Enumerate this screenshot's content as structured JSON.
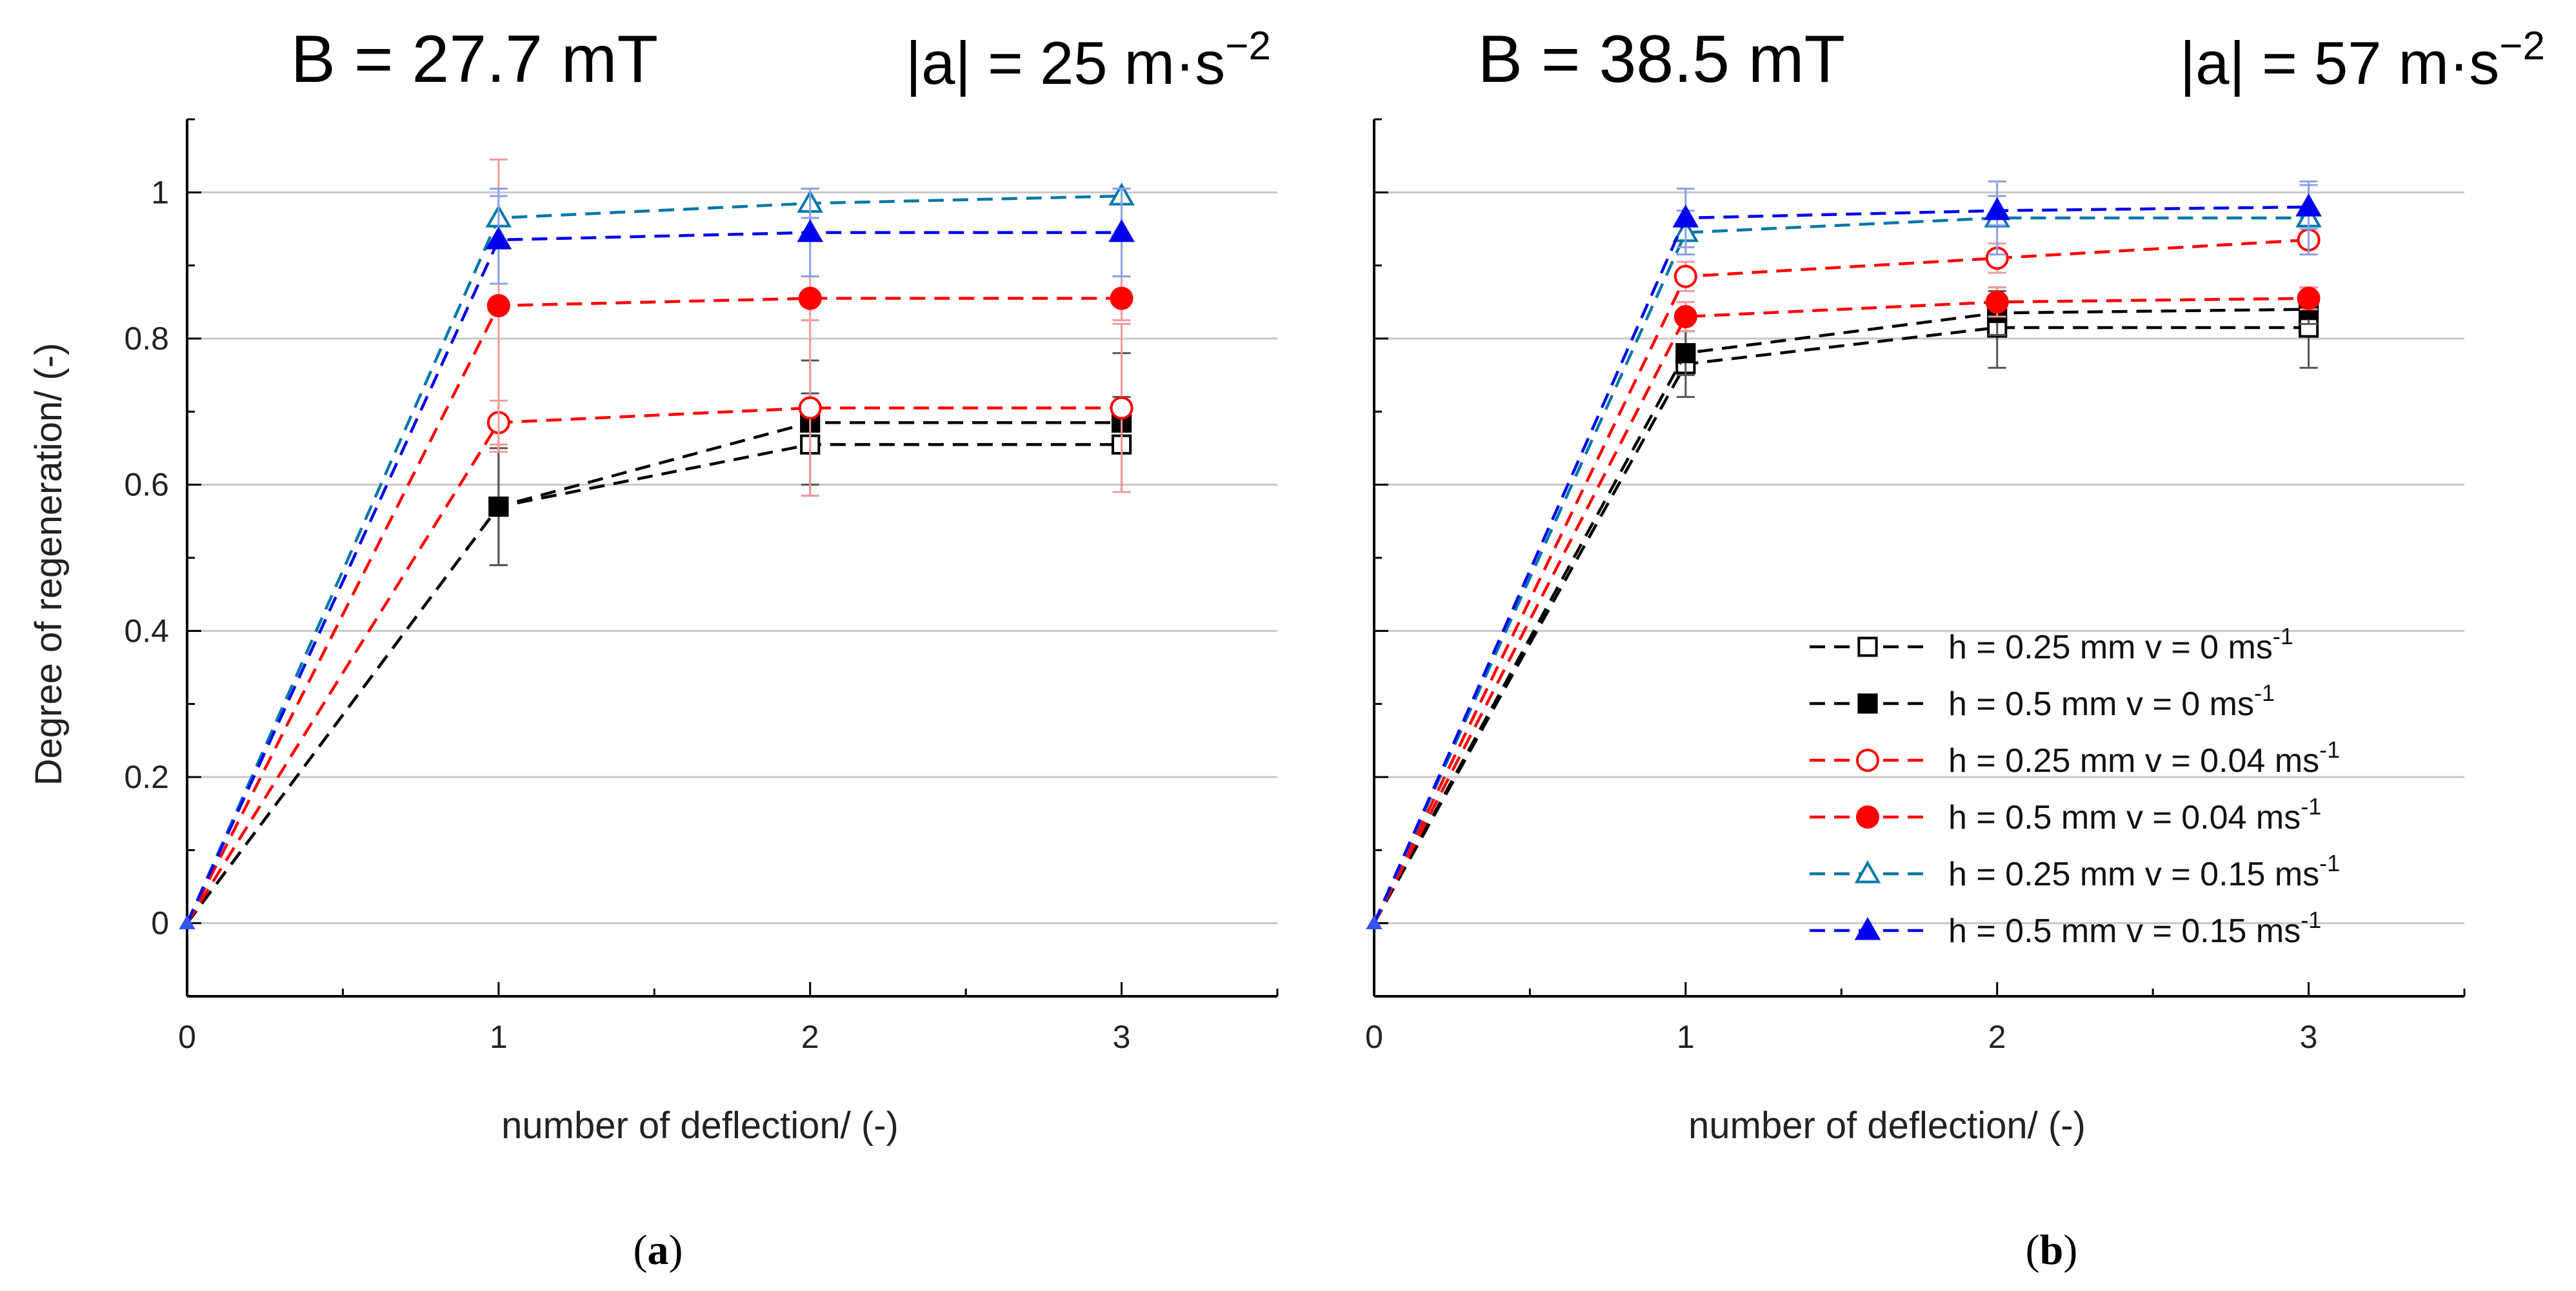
{
  "legend_entries": [
    {
      "label": "h = 0.25 mm v = 0 ms",
      "sup": "-1",
      "color": "#000000",
      "marker": "square",
      "filled": false
    },
    {
      "label": "h = 0.5 mm v = 0 ms",
      "sup": "-1",
      "color": "#000000",
      "marker": "square",
      "filled": true
    },
    {
      "label": "h = 0.25 mm v = 0.04 ms",
      "sup": "-1",
      "color": "#ff0000",
      "marker": "circle",
      "filled": false
    },
    {
      "label": "h = 0.5 mm v = 0.04 ms",
      "sup": "-1",
      "color": "#ff0000",
      "marker": "circle",
      "filled": true
    },
    {
      "label": "h = 0.25 mm v = 0.15 ms",
      "sup": "-1",
      "color": "#0077aa",
      "marker": "triangle",
      "filled": false
    },
    {
      "label": "h = 0.5 mm v = 0.15 ms",
      "sup": "-1",
      "color": "#0000ee",
      "marker": "triangle",
      "filled": true
    }
  ],
  "chart_data": [
    {
      "type": "line",
      "panel_label": "a",
      "title_left": "B = 27.7 mT",
      "title_right_base": "|a| = 25 m·s",
      "title_right_sup": "−2",
      "xlabel": "number of deflection/ (-)",
      "ylabel": "Degree of regeneration/ (-)",
      "x": [
        0,
        1,
        2,
        3
      ],
      "xlim": [
        0,
        3.5
      ],
      "ylim": [
        -0.1,
        1.1
      ],
      "xticks": [
        "0",
        "1",
        "2",
        "3"
      ],
      "yticks": [
        "0",
        "0.2",
        "0.4",
        "0.6",
        "0.8",
        "1"
      ],
      "grid": true,
      "series": [
        {
          "name": "h = 0.25 mm v = 0 ms-1",
          "values": [
            0,
            0.57,
            0.655,
            0.655
          ],
          "errors": [
            0,
            0.08,
            0.07,
            0.065
          ]
        },
        {
          "name": "h = 0.5 mm v = 0 ms-1",
          "values": [
            0,
            0.57,
            0.685,
            0.685
          ],
          "errors": [
            0,
            0.08,
            0.085,
            0.095
          ]
        },
        {
          "name": "h = 0.25 mm v = 0.04 ms-1",
          "values": [
            0,
            0.685,
            0.705,
            0.705
          ],
          "errors": [
            0,
            0.03,
            0.12,
            0.115
          ]
        },
        {
          "name": "h = 0.5 mm v = 0.04 ms-1",
          "values": [
            0,
            0.845,
            0.855,
            0.855
          ],
          "errors": [
            0,
            0.2,
            0.03,
            0.03
          ]
        },
        {
          "name": "h = 0.25 mm v = 0.15 ms-1",
          "values": [
            0,
            0.965,
            0.985,
            0.995
          ],
          "errors": [
            0,
            0.04,
            0.02,
            0.01
          ]
        },
        {
          "name": "h = 0.5 mm v = 0.15 ms-1",
          "values": [
            0,
            0.935,
            0.945,
            0.945
          ],
          "errors": [
            0,
            0.06,
            0.06,
            0.06
          ]
        }
      ]
    },
    {
      "type": "line",
      "panel_label": "b",
      "title_left": "B = 38.5 mT",
      "title_right_base": "|a| = 57 m·s",
      "title_right_sup": "−2",
      "xlabel": "number of deflection/ (-)",
      "ylabel": "",
      "x": [
        0,
        1,
        2,
        3
      ],
      "xlim": [
        0,
        3.5
      ],
      "ylim": [
        -0.1,
        1.1
      ],
      "xticks": [
        "0",
        "1",
        "2",
        "3"
      ],
      "yticks": [],
      "grid": true,
      "legend_position": "lower-right",
      "series": [
        {
          "name": "h = 0.25 mm v = 0 ms-1",
          "values": [
            0,
            0.765,
            0.815,
            0.815
          ],
          "errors": [
            0,
            0.045,
            0.055,
            0.055
          ]
        },
        {
          "name": "h = 0.5 mm v = 0 ms-1",
          "values": [
            0,
            0.78,
            0.835,
            0.84
          ],
          "errors": [
            0,
            0.03,
            0.03,
            0.02
          ]
        },
        {
          "name": "h = 0.25 mm v = 0.04 ms-1",
          "values": [
            0,
            0.885,
            0.91,
            0.935
          ],
          "errors": [
            0,
            0.02,
            0.02,
            0.02
          ]
        },
        {
          "name": "h = 0.5 mm v = 0.04 ms-1",
          "values": [
            0,
            0.83,
            0.85,
            0.855
          ],
          "errors": [
            0,
            0.02,
            0.02,
            0.015
          ]
        },
        {
          "name": "h = 0.25 mm v = 0.15 ms-1",
          "values": [
            0,
            0.945,
            0.965,
            0.965
          ],
          "errors": [
            0,
            0.03,
            0.05,
            0.05
          ]
        },
        {
          "name": "h = 0.5 mm v = 0.15 ms-1",
          "values": [
            0,
            0.965,
            0.975,
            0.98
          ],
          "errors": [
            0,
            0.04,
            0.02,
            0.03
          ]
        }
      ]
    }
  ]
}
